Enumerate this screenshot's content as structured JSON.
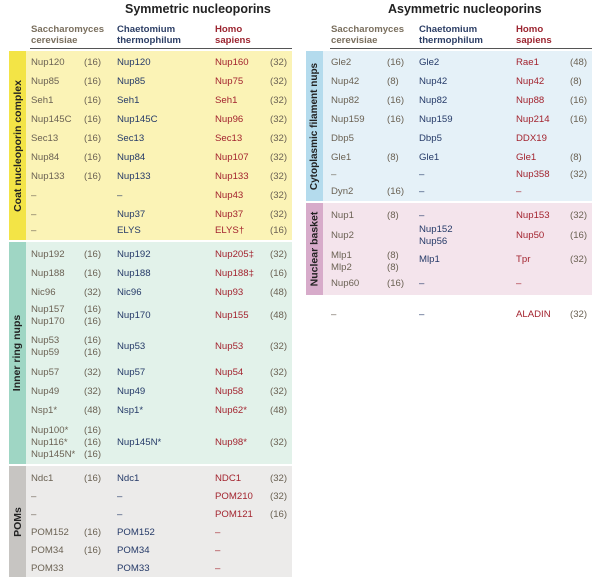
{
  "symmetric": {
    "title": "Symmetric nucleoporins",
    "headers": {
      "sc": "Saccharomyces cerevisiae",
      "ct": "Chaetomium thermophilum",
      "hs": "Homo sapiens"
    },
    "groups": [
      {
        "label": "Coat nucleoporin complex",
        "color": "#fbf3b6",
        "label_color": "#f4e547",
        "rows": [
          {
            "sc": [
              "Nup120"
            ],
            "scc": [
              "(16)"
            ],
            "ct": [
              "Nup120"
            ],
            "hs": "Nup160",
            "hsc": "(32)"
          },
          {
            "sc": [
              "Nup85"
            ],
            "scc": [
              "(16)"
            ],
            "ct": [
              "Nup85"
            ],
            "hs": "Nup75",
            "hsc": "(32)"
          },
          {
            "sc": [
              "Seh1"
            ],
            "scc": [
              "(16)"
            ],
            "ct": [
              "Seh1"
            ],
            "hs": "Seh1",
            "hsc": "(32)"
          },
          {
            "sc": [
              "Nup145C"
            ],
            "scc": [
              "(16)"
            ],
            "ct": [
              "Nup145C"
            ],
            "hs": "Nup96",
            "hsc": "(32)"
          },
          {
            "sc": [
              "Sec13"
            ],
            "scc": [
              "(16)"
            ],
            "ct": [
              "Sec13"
            ],
            "hs": "Sec13",
            "hsc": "(32)"
          },
          {
            "sc": [
              "Nup84"
            ],
            "scc": [
              "(16)"
            ],
            "ct": [
              "Nup84"
            ],
            "hs": "Nup107",
            "hsc": "(32)"
          },
          {
            "sc": [
              "Nup133"
            ],
            "scc": [
              "(16)"
            ],
            "ct": [
              "Nup133"
            ],
            "hs": "Nup133",
            "hsc": "(32)"
          },
          {
            "sc": [
              "–"
            ],
            "scc": [
              ""
            ],
            "ct": [
              "–"
            ],
            "hs": "Nup43",
            "hsc": "(32)"
          },
          {
            "sc": [
              "–"
            ],
            "scc": [
              ""
            ],
            "ct": [
              "Nup37"
            ],
            "hs": "Nup37",
            "hsc": "(32)"
          },
          {
            "sc": [
              "–"
            ],
            "scc": [
              ""
            ],
            "ct": [
              "ELYS"
            ],
            "hs": "ELYS†",
            "hsc": "(16)"
          }
        ]
      },
      {
        "label": "Inner ring nups",
        "color": "#e2f2ea",
        "label_color": "#9fd6c4",
        "rows": [
          {
            "sc": [
              "Nup192"
            ],
            "scc": [
              "(16)"
            ],
            "ct": [
              "Nup192"
            ],
            "hs": "Nup205‡",
            "hsc": "(32)"
          },
          {
            "sc": [
              "Nup188"
            ],
            "scc": [
              "(16)"
            ],
            "ct": [
              "Nup188"
            ],
            "hs": "Nup188‡",
            "hsc": "(16)"
          },
          {
            "sc": [
              "Nic96"
            ],
            "scc": [
              "(32)"
            ],
            "ct": [
              "Nic96"
            ],
            "hs": "Nup93",
            "hsc": "(48)"
          },
          {
            "sc": [
              "Nup157",
              "Nup170"
            ],
            "scc": [
              "(16)",
              "(16)"
            ],
            "ct": [
              "Nup170"
            ],
            "hs": "Nup155",
            "hsc": "(48)"
          },
          {
            "sc": [
              "Nup53",
              "Nup59"
            ],
            "scc": [
              "(16)",
              "(16)"
            ],
            "ct": [
              "Nup53"
            ],
            "hs": "Nup53",
            "hsc": "(32)"
          },
          {
            "sc": [
              "Nup57"
            ],
            "scc": [
              "(32)"
            ],
            "ct": [
              "Nup57"
            ],
            "hs": "Nup54",
            "hsc": "(32)"
          },
          {
            "sc": [
              "Nup49"
            ],
            "scc": [
              "(32)"
            ],
            "ct": [
              "Nup49"
            ],
            "hs": "Nup58",
            "hsc": "(32)"
          },
          {
            "sc": [
              "Nsp1*"
            ],
            "scc": [
              "(48)"
            ],
            "ct": [
              "Nsp1*"
            ],
            "hs": "Nup62*",
            "hsc": "(48)"
          },
          {
            "sc": [
              "Nup100*",
              "Nup116*",
              "Nup145N*"
            ],
            "scc": [
              "(16)",
              "(16)",
              "(16)"
            ],
            "ct": [
              "Nup145N*"
            ],
            "hs": "Nup98*",
            "hsc": "(32)"
          }
        ]
      },
      {
        "label": "POMs",
        "color": "#ecebea",
        "label_color": "#c7c5c2",
        "rows": [
          {
            "sc": [
              "Ndc1"
            ],
            "scc": [
              "(16)"
            ],
            "ct": [
              "Ndc1"
            ],
            "hs": "NDC1",
            "hsc": "(32)"
          },
          {
            "sc": [
              "–"
            ],
            "scc": [
              ""
            ],
            "ct": [
              "–"
            ],
            "hs": "POM210",
            "hsc": "(32)"
          },
          {
            "sc": [
              "–"
            ],
            "scc": [
              ""
            ],
            "ct": [
              "–"
            ],
            "hs": "POM121",
            "hsc": "(16)"
          },
          {
            "sc": [
              "POM152"
            ],
            "scc": [
              "(16)"
            ],
            "ct": [
              "POM152"
            ],
            "hs": "–",
            "hsc": ""
          },
          {
            "sc": [
              "POM34"
            ],
            "scc": [
              "(16)"
            ],
            "ct": [
              "POM34"
            ],
            "hs": "–",
            "hsc": ""
          },
          {
            "sc": [
              "POM33"
            ],
            "scc": [
              ""
            ],
            "ct": [
              "POM33"
            ],
            "hs": "–",
            "hsc": ""
          }
        ]
      }
    ]
  },
  "asymmetric": {
    "title": "Asymmetric nucleoporins",
    "headers": {
      "sc": "Saccharomyces cerevisiae",
      "ct": "Chaetomium thermophilum",
      "hs": "Homo sapiens"
    },
    "groups": [
      {
        "label": "Cytoplasmic filament nups",
        "color": "#e5f1f8",
        "label_color": "#b4dbed",
        "rows": [
          {
            "sc": [
              "Gle2"
            ],
            "scc": [
              "(16)"
            ],
            "ct": [
              "Gle2"
            ],
            "hs": "Rae1",
            "hsc": "(48)"
          },
          {
            "sc": [
              "Nup42"
            ],
            "scc": [
              "(8)"
            ],
            "ct": [
              "Nup42"
            ],
            "hs": "Nup42",
            "hsc": "(8)"
          },
          {
            "sc": [
              "Nup82"
            ],
            "scc": [
              "(16)"
            ],
            "ct": [
              "Nup82"
            ],
            "hs": "Nup88",
            "hsc": "(16)"
          },
          {
            "sc": [
              "Nup159"
            ],
            "scc": [
              "(16)"
            ],
            "ct": [
              "Nup159"
            ],
            "hs": "Nup214",
            "hsc": "(16)"
          },
          {
            "sc": [
              "Dbp5"
            ],
            "scc": [
              ""
            ],
            "ct": [
              "Dbp5"
            ],
            "hs": "DDX19",
            "hsc": ""
          },
          {
            "sc": [
              "Gle1"
            ],
            "scc": [
              "(8)"
            ],
            "ct": [
              "Gle1"
            ],
            "hs": "Gle1",
            "hsc": "(8)"
          },
          {
            "sc": [
              "–"
            ],
            "scc": [
              ""
            ],
            "ct": [
              "–"
            ],
            "hs": "Nup358",
            "hsc": "(32)"
          },
          {
            "sc": [
              "Dyn2"
            ],
            "scc": [
              "(16)"
            ],
            "ct": [
              "–"
            ],
            "hs": "–",
            "hsc": ""
          }
        ]
      },
      {
        "label": "Nuclear basket",
        "color": "#f4e4ec",
        "label_color": "#d7abca",
        "rows": [
          {
            "sc": [
              "Nup1"
            ],
            "scc": [
              "(8)"
            ],
            "ct": [
              "–"
            ],
            "hs": "Nup153",
            "hsc": "(32)"
          },
          {
            "sc": [
              "Nup2"
            ],
            "scc": [
              ""
            ],
            "ct": [
              "Nup152",
              "Nup56"
            ],
            "hs": "Nup50",
            "hsc": "(16)"
          },
          {
            "sc": [
              "Mlp1",
              "Mlp2"
            ],
            "scc": [
              "(8)",
              "(8)"
            ],
            "ct": [
              "Mlp1"
            ],
            "hs": "Tpr",
            "hsc": "(32)"
          },
          {
            "sc": [
              "Nup60"
            ],
            "scc": [
              "(16)"
            ],
            "ct": [
              "–"
            ],
            "hs": "–",
            "hsc": ""
          }
        ]
      }
    ],
    "extra": {
      "sc": "–",
      "ct": "–",
      "hs": "ALADIN",
      "hsc": "(32)"
    }
  }
}
